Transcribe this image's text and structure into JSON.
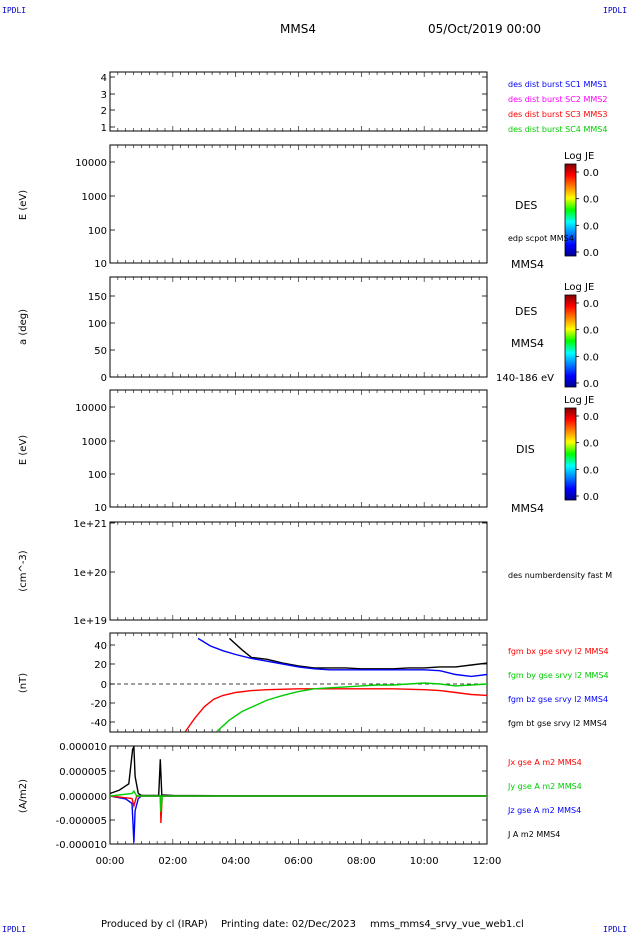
{
  "corner_labels": {
    "top_left": "IPDLI",
    "top_right": "IPDLI",
    "bottom_left": "IPDLI",
    "bottom_right": "IPDLI"
  },
  "header": {
    "spacecraft": "MMS4",
    "date": "05/Oct/2019 00:00"
  },
  "footer": {
    "produced_by": "Produced by cl (IRAP)",
    "printing_date": "Printing date: 02/Dec/2023",
    "file": "mms_mms4_srvy_vue_web1.cl"
  },
  "x_ticks": [
    "00:00",
    "02:00",
    "04:00",
    "06:00",
    "08:00",
    "10:00",
    "12:00"
  ],
  "colors": {
    "blue": "#0000ff",
    "magenta": "#ff00ff",
    "red": "#ff0000",
    "green": "#00cc00",
    "black": "#000000"
  },
  "colorbar_label": "Log JE",
  "panel1": {
    "yticks": [
      "4",
      "3",
      "2",
      "1"
    ],
    "legend": [
      {
        "text": "des dist burst SC1 MMS1",
        "color": "#0000ff"
      },
      {
        "text": "des dist burst SC2 MMS2",
        "color": "#ff00ff"
      },
      {
        "text": "des dist burst SC3 MMS3",
        "color": "#ff0000"
      },
      {
        "text": "des dist burst SC4 MMS4",
        "color": "#00cc00"
      }
    ]
  },
  "panel2": {
    "ylabel": "E (eV)",
    "yticks": [
      "10000",
      "1000",
      "100",
      "10"
    ],
    "instrument": "DES",
    "extra": "edp scpot MMS4",
    "sc": "MMS4",
    "colorbar_ticks": [
      "0.0",
      "0.0",
      "0.0",
      "0.0"
    ]
  },
  "panel3": {
    "ylabel": "a (deg)",
    "yticks": [
      "150",
      "100",
      "50",
      "0"
    ],
    "instrument": "DES",
    "sc": "MMS4",
    "energy": "140-186 eV",
    "colorbar_ticks": [
      "0.0",
      "0.0",
      "0.0",
      "0.0"
    ]
  },
  "panel4": {
    "ylabel": "E (eV)",
    "yticks": [
      "10000",
      "1000",
      "100",
      "10"
    ],
    "instrument": "DIS",
    "sc": "MMS4",
    "colorbar_ticks": [
      "0.0",
      "0.0",
      "0.0",
      "0.0"
    ]
  },
  "panel5": {
    "ylabel": "(cm^-3)",
    "yticks": [
      "1e+21",
      "1e+20",
      "1e+19"
    ],
    "legend": "des numberdensity fast M"
  },
  "panel6": {
    "ylabel": "(nT)",
    "yticks": [
      "40",
      "20",
      "0",
      "-20",
      "-40"
    ],
    "legend": [
      {
        "text": "fgm bx gse srvy l2 MMS4",
        "color": "#ff0000"
      },
      {
        "text": "fgm by gse srvy l2 MMS4",
        "color": "#00cc00"
      },
      {
        "text": "fgm bz gse srvy l2 MMS4",
        "color": "#0000ff"
      },
      {
        "text": "fgm bt gse srvy l2 MMS4",
        "color": "#000000"
      }
    ]
  },
  "panel7": {
    "ylabel": "(A/m2)",
    "yticks": [
      "0.000010",
      "0.000005",
      "0.000000",
      "-0.000005",
      "-0.000010"
    ],
    "legend": [
      {
        "text": "Jx gse A m2 MMS4",
        "color": "#ff0000"
      },
      {
        "text": "Jy gse A m2 MMS4",
        "color": "#00cc00"
      },
      {
        "text": "Jz gse A m2 MMS4",
        "color": "#0000ff"
      },
      {
        "text": "J A m2 MMS4",
        "color": "#000000"
      }
    ]
  },
  "chart_data": [
    {
      "type": "line",
      "panel": "magnetic field",
      "ylabel": "(nT)",
      "ylim": [
        -50,
        50
      ],
      "xlim": [
        0,
        12
      ],
      "xunit": "hours UT",
      "series": [
        {
          "name": "fgm bt gse srvy l2 MMS4",
          "color": "#000000",
          "x": [
            3.8,
            4.2,
            4.5,
            5.0,
            5.5,
            6.0,
            6.5,
            7.0,
            7.5,
            8.0,
            8.5,
            9.0,
            9.5,
            10.0,
            10.5,
            11.0,
            11.5,
            12.0
          ],
          "y": [
            48,
            36,
            28,
            26,
            22,
            19,
            17,
            17,
            17,
            16,
            16,
            16,
            17,
            17,
            18,
            18,
            20,
            22
          ]
        },
        {
          "name": "fgm bz gse srvy l2 MMS4",
          "color": "#0000ff",
          "x": [
            2.8,
            3.2,
            3.6,
            4.0,
            4.5,
            5.0,
            5.5,
            6.0,
            6.5,
            7.0,
            7.5,
            8.0,
            8.5,
            9.0,
            9.5,
            10.0,
            10.5,
            11.0,
            11.5,
            12.0
          ],
          "y": [
            48,
            40,
            35,
            31,
            27,
            24,
            21,
            18,
            16,
            15,
            15,
            15,
            15,
            15,
            15,
            15,
            14,
            10,
            8,
            10
          ]
        },
        {
          "name": "fgm bx gse srvy l2 MMS4",
          "color": "#ff0000",
          "x": [
            2.4,
            2.7,
            3.0,
            3.3,
            3.6,
            4.0,
            4.5,
            5.0,
            6.0,
            7.0,
            8.0,
            9.0,
            10.0,
            10.5,
            11.0,
            11.5,
            12.0
          ],
          "y": [
            -50,
            -36,
            -24,
            -16,
            -12,
            -9,
            -7,
            -6,
            -5,
            -5,
            -5,
            -5,
            -6,
            -7,
            -9,
            -11,
            -12
          ]
        },
        {
          "name": "fgm by gse srvy l2 MMS4",
          "color": "#00cc00",
          "x": [
            3.4,
            3.8,
            4.2,
            4.6,
            5.0,
            5.5,
            6.0,
            6.5,
            7.0,
            7.5,
            8.0,
            8.5,
            9.0,
            9.5,
            10.0,
            10.5,
            11.0,
            11.5,
            12.0
          ],
          "y": [
            -50,
            -38,
            -29,
            -23,
            -17,
            -12,
            -8,
            -5,
            -4,
            -3,
            -2,
            -1,
            -1,
            0,
            1,
            0,
            -2,
            -1,
            0
          ]
        }
      ]
    },
    {
      "type": "line",
      "panel": "current density",
      "ylabel": "(A/m2)",
      "ylim": [
        -1e-05,
        1e-05
      ],
      "xlim": [
        0,
        12
      ],
      "xunit": "hours UT",
      "series": [
        {
          "name": "J A m2 MMS4",
          "color": "#000000",
          "x": [
            0.0,
            0.3,
            0.6,
            0.72,
            0.76,
            0.8,
            0.9,
            1.0,
            1.55,
            1.6,
            1.65,
            2.0,
            4.0,
            6.0,
            8.0,
            10.0,
            12.0
          ],
          "y": [
            5e-07,
            1.2e-06,
            2.5e-06,
            9.5e-06,
            1e-05,
            4e-06,
            5e-07,
            1e-07,
            1e-07,
            7.5e-06,
            2e-07,
            1e-07,
            5e-08,
            5e-08,
            5e-08,
            5e-08,
            5e-08
          ]
        },
        {
          "name": "Jz gse A m2 MMS4",
          "color": "#0000ff",
          "x": [
            0.0,
            0.5,
            0.7,
            0.76,
            0.8,
            0.9,
            1.0,
            2.0,
            12.0
          ],
          "y": [
            0.0,
            -6e-07,
            -1.5e-06,
            -9.5e-06,
            -3e-06,
            -5e-07,
            0.0,
            0.0,
            0.0
          ]
        },
        {
          "name": "Jx gse A m2 MMS4",
          "color": "#ff0000",
          "x": [
            0.0,
            0.7,
            0.76,
            0.85,
            1.6,
            1.62,
            1.66,
            2.0,
            12.0
          ],
          "y": [
            0.0,
            -5e-07,
            -2e-06,
            0.0,
            0.0,
            -5.5e-06,
            0.0,
            0.0,
            0.0
          ]
        },
        {
          "name": "Jy gse A m2 MMS4",
          "color": "#00cc00",
          "x": [
            0.0,
            0.7,
            0.76,
            0.85,
            1.6,
            1.62,
            1.66,
            2.0,
            12.0
          ],
          "y": [
            0.0,
            5e-07,
            1e-06,
            0.0,
            0.0,
            -3.2e-06,
            0.0,
            0.0,
            0.0
          ]
        }
      ]
    }
  ]
}
